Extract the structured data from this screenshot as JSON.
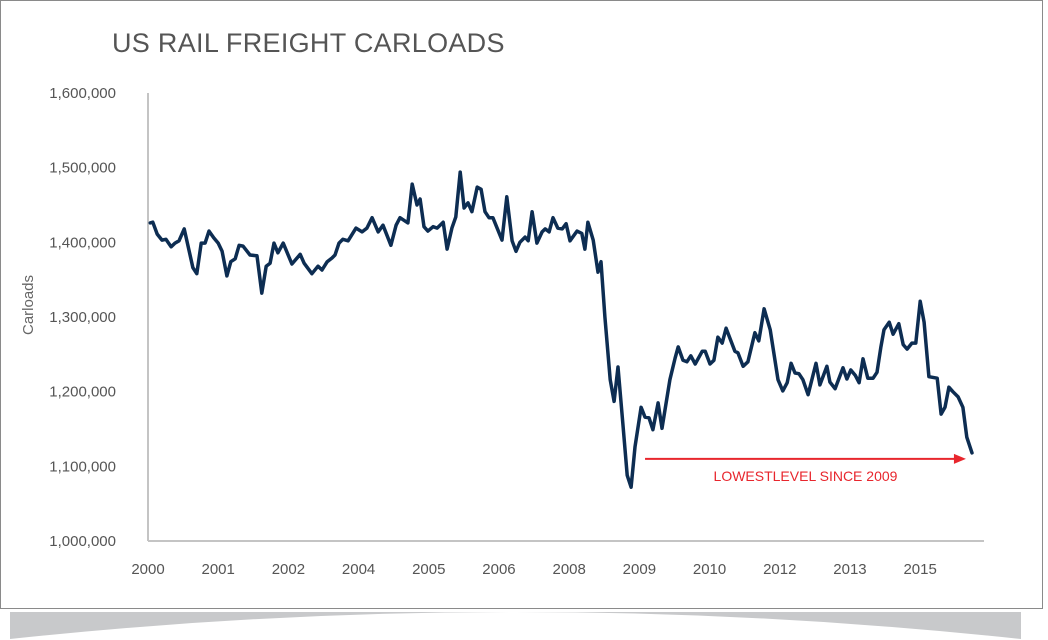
{
  "chart_data": {
    "type": "line",
    "title": "US RAIL FREIGHT CARLOADS",
    "ylabel": "Carloads",
    "xlabel": "",
    "ylim": [
      1000000,
      1600000
    ],
    "yticks": [
      1000000,
      1100000,
      1200000,
      1300000,
      1400000,
      1500000,
      1600000
    ],
    "ytick_labels": [
      "1,000,000",
      "1,100,000",
      "1,200,000",
      "1,300,000",
      "1,400,000",
      "1,500,000",
      "1,600,000"
    ],
    "x_unit": "months since Jan 2000",
    "xlim": [
      0,
      192
    ],
    "xtick_labels": [
      "2000",
      "2001",
      "2002",
      "2004",
      "2005",
      "2006",
      "2008",
      "2009",
      "2010",
      "2012",
      "2013",
      "2015"
    ],
    "xtick_positions": [
      0,
      16.1,
      32.2,
      48.3,
      64.4,
      80.5,
      96.6,
      112.7,
      128.8,
      144.9,
      161,
      177.1
    ],
    "grid": false,
    "series": [
      {
        "name": "Carloads",
        "color": "#0d2d52",
        "x": [
          0.5,
          1.1,
          2.1,
          3.2,
          4.1,
          5.3,
          6.2,
          7.1,
          8.3,
          10.3,
          11.2,
          12.2,
          13.1,
          14.0,
          15.1,
          16.1,
          17.0,
          18.1,
          19.0,
          20.0,
          20.9,
          21.8,
          23.4,
          25.0,
          26.1,
          27.1,
          28.0,
          28.9,
          29.8,
          31.0,
          33.0,
          34.9,
          35.8,
          37.6,
          39.0,
          39.9,
          41.1,
          42.2,
          42.9,
          43.8,
          44.7,
          45.9,
          47.7,
          49.1,
          50.2,
          51.4,
          52.8,
          53.9,
          55.7,
          56.9,
          57.8,
          59.6,
          60.6,
          61.7,
          62.4,
          63.3,
          64.2,
          65.4,
          66.3,
          67.7,
          68.6,
          69.7,
          70.6,
          71.6,
          72.5,
          73.4,
          74.3,
          75.5,
          76.4,
          77.3,
          78.2,
          79.1,
          81.2,
          82.3,
          83.5,
          84.4,
          85.3,
          86.5,
          87.2,
          88.1,
          89.2,
          90.4,
          91.1,
          92.0,
          92.9,
          94.0,
          95.0,
          95.9,
          96.8,
          98.4,
          99.5,
          100.2,
          100.9,
          102.1,
          103.2,
          103.9,
          104.8,
          106.0,
          106.9,
          107.8,
          108.9,
          109.9,
          110.8,
          111.7,
          113.1,
          114.0,
          114.9,
          115.8,
          117.0,
          117.9,
          119.7,
          120.9,
          121.6,
          122.7,
          123.6,
          124.5,
          125.5,
          127.1,
          127.8,
          128.9,
          129.8,
          130.7,
          131.7,
          132.6,
          134.6,
          135.3,
          136.5,
          137.6,
          139.2,
          140.1,
          141.3,
          142.7,
          144.5,
          145.6,
          146.6,
          147.5,
          148.4,
          149.3,
          150.2,
          151.4,
          153.2,
          154.1,
          155.7,
          156.4,
          157.6,
          159.4,
          160.3,
          161.2,
          162.2,
          163.1,
          164.0,
          165.1,
          166.3,
          167.2,
          168.1,
          168.8,
          170.0,
          170.9,
          172.2,
          173.2,
          174.1,
          175.2,
          176.1,
          177.1,
          178.0,
          179.1,
          181.0,
          181.9,
          182.8,
          183.7,
          184.6,
          185.8,
          186.9,
          187.8,
          189.0
        ],
        "values": [
          1426000,
          1427000,
          1411000,
          1403000,
          1404000,
          1394000,
          1399000,
          1402000,
          1418000,
          1366000,
          1358000,
          1399000,
          1399000,
          1415000,
          1406000,
          1399000,
          1388000,
          1355000,
          1374000,
          1378000,
          1396000,
          1395000,
          1383000,
          1382000,
          1332000,
          1368000,
          1372000,
          1399000,
          1386000,
          1399000,
          1371000,
          1384000,
          1372000,
          1358000,
          1368000,
          1363000,
          1374000,
          1379000,
          1383000,
          1399000,
          1404000,
          1402000,
          1419000,
          1414000,
          1419000,
          1433000,
          1414000,
          1423000,
          1396000,
          1423000,
          1433000,
          1426000,
          1478000,
          1450000,
          1458000,
          1421000,
          1415000,
          1421000,
          1419000,
          1427000,
          1391000,
          1419000,
          1434000,
          1494000,
          1446000,
          1453000,
          1441000,
          1474000,
          1471000,
          1441000,
          1433000,
          1433000,
          1403000,
          1461000,
          1402000,
          1388000,
          1400000,
          1407000,
          1402000,
          1441000,
          1399000,
          1414000,
          1418000,
          1414000,
          1433000,
          1419000,
          1418000,
          1425000,
          1402000,
          1415000,
          1412000,
          1391000,
          1427000,
          1403000,
          1360000,
          1374000,
          1300000,
          1216000,
          1187000,
          1233000,
          1158000,
          1088000,
          1072000,
          1126000,
          1179000,
          1166000,
          1165000,
          1149000,
          1185000,
          1151000,
          1216000,
          1245000,
          1260000,
          1242000,
          1240000,
          1248000,
          1237000,
          1254000,
          1254000,
          1237000,
          1242000,
          1273000,
          1265000,
          1285000,
          1254000,
          1252000,
          1234000,
          1240000,
          1279000,
          1268000,
          1311000,
          1283000,
          1216000,
          1201000,
          1212000,
          1238000,
          1225000,
          1224000,
          1216000,
          1196000,
          1238000,
          1209000,
          1234000,
          1213000,
          1204000,
          1232000,
          1217000,
          1229000,
          1222000,
          1212000,
          1244000,
          1218000,
          1218000,
          1226000,
          1260000,
          1283000,
          1293000,
          1277000,
          1291000,
          1263000,
          1257000,
          1265000,
          1265000,
          1321000,
          1293000,
          1220000,
          1218000,
          1170000,
          1179000,
          1206000,
          1200000,
          1193000,
          1179000,
          1139000,
          1118000
        ]
      }
    ],
    "annotations": [
      {
        "text": "LOWESTLEVEL SINCE 2009",
        "type": "arrow",
        "color": "#e8262d",
        "x_start": 114,
        "x_end": 187.6,
        "y": 1110000
      }
    ]
  }
}
